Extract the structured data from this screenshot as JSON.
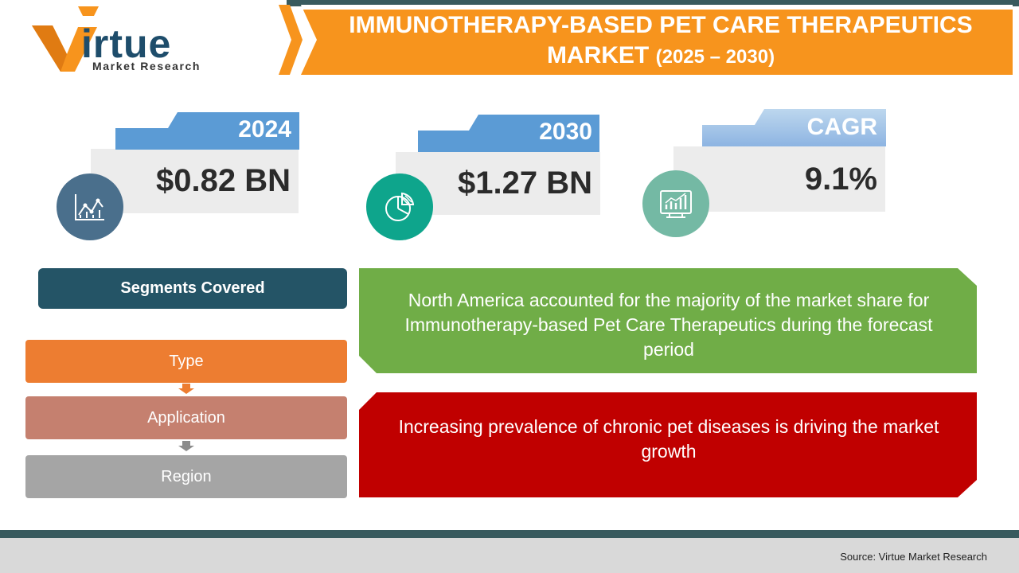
{
  "logo": {
    "brand_first_letter": "V",
    "brand_rest": "irtue",
    "tagline": "Market Research"
  },
  "title": {
    "line1": "IMMUNOTHERAPY-BASED PET CARE THERAPEUTICS",
    "line2_main": "MARKET",
    "line2_years": "(2025 – 2030)"
  },
  "stats": [
    {
      "label": "2024",
      "value": "$0.82 BN",
      "icon": "line-chart-icon",
      "tab_color": "#5b9bd5",
      "icon_color": "#4a6f8c"
    },
    {
      "label": "2030",
      "value": "$1.27 BN",
      "icon": "pie-chart-icon",
      "tab_color": "#5b9bd5",
      "icon_color": "#0ea58c"
    },
    {
      "label": "CAGR",
      "value": "9.1%",
      "icon": "bar-chart-icon",
      "tab_color": "#9dc3e6",
      "icon_color": "#74b9a4"
    }
  ],
  "segments": {
    "header": "Segments Covered",
    "items": [
      {
        "label": "Type",
        "color": "#ed7d31"
      },
      {
        "label": "Application",
        "color": "#c5806f"
      },
      {
        "label": "Region",
        "color": "#a5a5a5"
      }
    ]
  },
  "insights": [
    {
      "text": "North America accounted for the majority of the market share for Immunotherapy-based Pet Care Therapeutics during the forecast period",
      "color": "#70ad47"
    },
    {
      "text": "Increasing prevalence of chronic pet diseases is driving the market growth",
      "color": "#c00000"
    }
  ],
  "footer": {
    "source": "Source: Virtue Market Research"
  },
  "colors": {
    "accent_orange": "#f7941d",
    "dark_teal": "#385a5e",
    "brand_blue": "#1e4d6b"
  }
}
